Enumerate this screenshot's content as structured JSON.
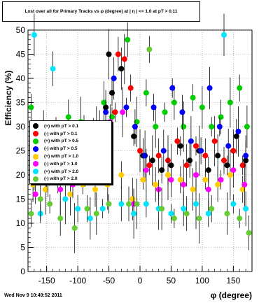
{
  "footer": {
    "timestamp": "Wed Nov  9 10:49:52 2011"
  },
  "chart_data": {
    "type": "scatter",
    "title": "Lost over all for Primary Tracks vs φ (degree) at | η | <= 1.0 at pT > 0.11",
    "xlabel": "φ (degree)",
    "ylabel": "Efficiency (%)",
    "xlim": [
      -180,
      180
    ],
    "ylim": [
      0,
      50
    ],
    "grid": true,
    "legend_position": "left-middle",
    "xticks": [
      "-150",
      "-100",
      "-50",
      "0",
      "50",
      "100",
      "150"
    ],
    "yticks": [
      "0",
      "5",
      "10",
      "15",
      "20",
      "25",
      "30",
      "35",
      "40",
      "45",
      "50"
    ],
    "series": [
      {
        "name": "(+) with pT > 0.1",
        "color": "#000000",
        "points": [
          [
            -170,
            27
          ],
          [
            -150,
            20
          ],
          [
            -130,
            25
          ],
          [
            -110,
            22
          ],
          [
            -90,
            28
          ],
          [
            -70,
            26
          ],
          [
            -55,
            34
          ],
          [
            -50,
            45
          ],
          [
            -45,
            37
          ],
          [
            -30,
            42
          ],
          [
            -10,
            28
          ],
          [
            5,
            24
          ],
          [
            20,
            23
          ],
          [
            35,
            21
          ],
          [
            50,
            22
          ],
          [
            65,
            26
          ],
          [
            80,
            23
          ],
          [
            95,
            25
          ],
          [
            110,
            21
          ],
          [
            125,
            24
          ],
          [
            140,
            22
          ],
          [
            155,
            28
          ],
          [
            170,
            23
          ]
        ]
      },
      {
        "name": "(-) with pT > 0.1",
        "color": "#ff0000",
        "points": [
          [
            -165,
            26
          ],
          [
            -145,
            21
          ],
          [
            -125,
            23
          ],
          [
            -105,
            24
          ],
          [
            -85,
            27
          ],
          [
            -65,
            29
          ],
          [
            -40,
            33
          ],
          [
            -35,
            45
          ],
          [
            -25,
            44
          ],
          [
            -15,
            38
          ],
          [
            0,
            25
          ],
          [
            15,
            22
          ],
          [
            30,
            24
          ],
          [
            45,
            23
          ],
          [
            60,
            27
          ],
          [
            75,
            22
          ],
          [
            90,
            26
          ],
          [
            105,
            24
          ],
          [
            120,
            27
          ],
          [
            135,
            23
          ],
          [
            150,
            25
          ],
          [
            165,
            22
          ]
        ]
      },
      {
        "name": "(+) with pT > 0.5",
        "color": "#00cc00",
        "points": [
          [
            -175,
            34
          ],
          [
            -155,
            29
          ],
          [
            -135,
            30
          ],
          [
            -115,
            32
          ],
          [
            -95,
            31
          ],
          [
            -75,
            29
          ],
          [
            -58,
            35
          ],
          [
            -45,
            32
          ],
          [
            -20,
            48
          ],
          [
            -5,
            31
          ],
          [
            10,
            37
          ],
          [
            25,
            30
          ],
          [
            40,
            33
          ],
          [
            55,
            35
          ],
          [
            70,
            30
          ],
          [
            85,
            36
          ],
          [
            100,
            34
          ],
          [
            115,
            30
          ],
          [
            130,
            32
          ],
          [
            145,
            35
          ],
          [
            160,
            38
          ],
          [
            172,
            30
          ]
        ]
      },
      {
        "name": "(-) with pT > 0.5",
        "color": "#0000ff",
        "points": [
          [
            -170,
            22
          ],
          [
            -150,
            26
          ],
          [
            -130,
            24
          ],
          [
            -110,
            23
          ],
          [
            -90,
            25
          ],
          [
            -70,
            29
          ],
          [
            -55,
            33
          ],
          [
            -42,
            40
          ],
          [
            -22,
            34
          ],
          [
            -8,
            30
          ],
          [
            8,
            24
          ],
          [
            22,
            34
          ],
          [
            38,
            25
          ],
          [
            52,
            38
          ],
          [
            68,
            33
          ],
          [
            82,
            27
          ],
          [
            98,
            25
          ],
          [
            112,
            38
          ],
          [
            128,
            30
          ],
          [
            142,
            26
          ],
          [
            158,
            29
          ],
          [
            170,
            24
          ]
        ]
      },
      {
        "name": "(+) with pT > 1.0",
        "color": "#ffcc00",
        "points": [
          [
            -172,
            18
          ],
          [
            -152,
            17
          ],
          [
            -132,
            19
          ],
          [
            -112,
            16
          ],
          [
            -92,
            18
          ],
          [
            -72,
            17
          ],
          [
            -52,
            18
          ],
          [
            -30,
            20
          ],
          [
            -12,
            15
          ],
          [
            5,
            19
          ],
          [
            25,
            18
          ],
          [
            45,
            20
          ],
          [
            65,
            19
          ],
          [
            85,
            17
          ],
          [
            105,
            19
          ],
          [
            125,
            18
          ],
          [
            145,
            20
          ],
          [
            165,
            17
          ]
        ]
      },
      {
        "name": "(-) with pT > 1.0",
        "color": "#ff00ff",
        "points": [
          [
            -168,
            16
          ],
          [
            -148,
            19
          ],
          [
            -128,
            17
          ],
          [
            -108,
            18
          ],
          [
            -88,
            22
          ],
          [
            -68,
            24
          ],
          [
            -48,
            31
          ],
          [
            -28,
            33
          ],
          [
            -10,
            14
          ],
          [
            10,
            21
          ],
          [
            30,
            17
          ],
          [
            50,
            19
          ],
          [
            70,
            18
          ],
          [
            90,
            20
          ],
          [
            110,
            17
          ],
          [
            130,
            19
          ],
          [
            150,
            21
          ],
          [
            168,
            18
          ]
        ]
      },
      {
        "name": "(+) with pT > 2.0",
        "color": "#00e5ff",
        "points": [
          [
            -170,
            49
          ],
          [
            -160,
            12
          ],
          [
            -140,
            42
          ],
          [
            -120,
            15
          ],
          [
            -100,
            13
          ],
          [
            -80,
            11
          ],
          [
            -60,
            13
          ],
          [
            -30,
            14
          ],
          [
            -10,
            12
          ],
          [
            10,
            14
          ],
          [
            30,
            13
          ],
          [
            50,
            12
          ],
          [
            70,
            13
          ],
          [
            90,
            14
          ],
          [
            110,
            12
          ],
          [
            135,
            49
          ],
          [
            150,
            14
          ],
          [
            170,
            13
          ]
        ]
      },
      {
        "name": "(-) with pT > 2.0",
        "color": "#66cc33",
        "points": [
          [
            -175,
            12
          ],
          [
            -160,
            15
          ],
          [
            -145,
            14
          ],
          [
            -128,
            11
          ],
          [
            -105,
            9
          ],
          [
            -85,
            13
          ],
          [
            -70,
            12
          ],
          [
            -50,
            14
          ],
          [
            -18,
            14
          ],
          [
            -5,
            14
          ],
          [
            15,
            46
          ],
          [
            35,
            13
          ],
          [
            55,
            11
          ],
          [
            75,
            12
          ],
          [
            95,
            11
          ],
          [
            115,
            13
          ],
          [
            140,
            12
          ],
          [
            160,
            11
          ],
          [
            175,
            8
          ]
        ]
      }
    ]
  }
}
